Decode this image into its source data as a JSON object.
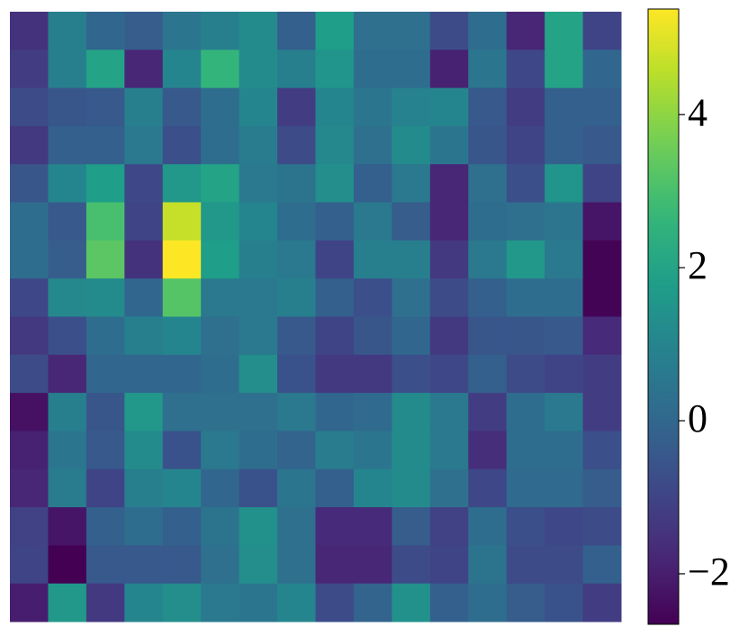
{
  "chart_data": {
    "type": "heatmap",
    "colormap": "viridis",
    "clim": [
      -2.66,
      5.38
    ],
    "colorbar_ticks": [
      {
        "value": -2,
        "label": "−2"
      },
      0,
      2,
      4
    ],
    "z": [
      [
        -1.5,
        0.8,
        0.0,
        -0.3,
        0.5,
        0.8,
        1.2,
        -0.2,
        1.8,
        0.3,
        0.3,
        -0.8,
        0.2,
        -1.8,
        2.0,
        -1.0
      ],
      [
        -1.2,
        0.8,
        2.0,
        -1.8,
        1.0,
        2.6,
        1.2,
        0.8,
        1.5,
        0.2,
        0.2,
        -1.9,
        0.5,
        -0.9,
        2.0,
        0.0
      ],
      [
        -0.8,
        -0.5,
        -0.4,
        0.8,
        -0.4,
        0.2,
        1.0,
        -1.2,
        1.0,
        0.5,
        0.9,
        1.0,
        -0.4,
        -1.2,
        -0.2,
        -0.2
      ],
      [
        -1.3,
        -0.2,
        -0.2,
        0.6,
        -0.7,
        0.2,
        0.7,
        -0.8,
        1.1,
        0.3,
        1.2,
        0.5,
        -0.5,
        -1.0,
        -0.2,
        -0.4
      ],
      [
        -0.5,
        1.0,
        1.8,
        -0.9,
        1.6,
        2.0,
        0.6,
        0.4,
        1.3,
        -0.2,
        0.6,
        -1.8,
        0.3,
        -0.7,
        1.5,
        -1.0
      ],
      [
        0.2,
        -0.4,
        3.0,
        -1.0,
        4.7,
        1.6,
        1.0,
        0.2,
        -0.2,
        0.6,
        -0.3,
        -1.8,
        0.2,
        0.3,
        0.5,
        -2.2
      ],
      [
        0.2,
        -0.3,
        3.3,
        -1.5,
        5.38,
        1.8,
        0.8,
        0.6,
        -1.0,
        0.8,
        0.8,
        -1.3,
        0.6,
        1.6,
        0.6,
        -2.6
      ],
      [
        -0.9,
        1.1,
        1.2,
        0.0,
        3.2,
        0.6,
        0.6,
        0.8,
        -0.2,
        -0.7,
        0.3,
        -0.8,
        -0.2,
        0.2,
        0.2,
        -2.6
      ],
      [
        -1.3,
        -0.7,
        0.2,
        0.8,
        1.0,
        0.3,
        0.6,
        -0.4,
        -1.0,
        -0.5,
        0.0,
        -1.3,
        -0.5,
        -0.5,
        -0.4,
        -1.7
      ],
      [
        -0.8,
        -1.8,
        0.0,
        0.0,
        0.0,
        0.2,
        1.3,
        -0.6,
        -1.3,
        -1.3,
        -0.7,
        -0.9,
        -0.2,
        -0.8,
        -1.0,
        -1.2
      ],
      [
        -2.3,
        0.8,
        -0.5,
        1.6,
        0.3,
        0.3,
        0.3,
        0.6,
        0.0,
        0.1,
        1.2,
        0.6,
        -1.2,
        0.2,
        0.6,
        -1.2
      ],
      [
        -1.9,
        0.5,
        -0.4,
        1.2,
        -0.6,
        0.6,
        0.2,
        -0.1,
        0.7,
        0.5,
        1.2,
        0.6,
        -1.6,
        0.2,
        0.2,
        -0.7
      ],
      [
        -1.8,
        0.7,
        -1.0,
        0.8,
        1.0,
        0.0,
        -0.6,
        0.5,
        -0.2,
        1.0,
        1.2,
        0.3,
        -0.9,
        0.1,
        0.1,
        -0.3
      ],
      [
        -1.1,
        -2.2,
        -0.2,
        0.2,
        -0.2,
        0.4,
        1.4,
        0.3,
        -1.7,
        -1.7,
        -0.3,
        -1.1,
        0.2,
        -0.7,
        -0.9,
        -0.8
      ],
      [
        -1.0,
        -2.66,
        -0.4,
        -0.4,
        -0.4,
        0.3,
        1.3,
        0.3,
        -1.8,
        -1.8,
        -0.8,
        -1.0,
        0.4,
        -0.8,
        -0.8,
        -0.2
      ],
      [
        -2.0,
        1.6,
        -1.3,
        1.0,
        1.3,
        0.6,
        0.5,
        1.0,
        -0.8,
        -0.1,
        1.4,
        -0.2,
        0.2,
        -0.3,
        -0.6,
        -1.2
      ]
    ]
  }
}
